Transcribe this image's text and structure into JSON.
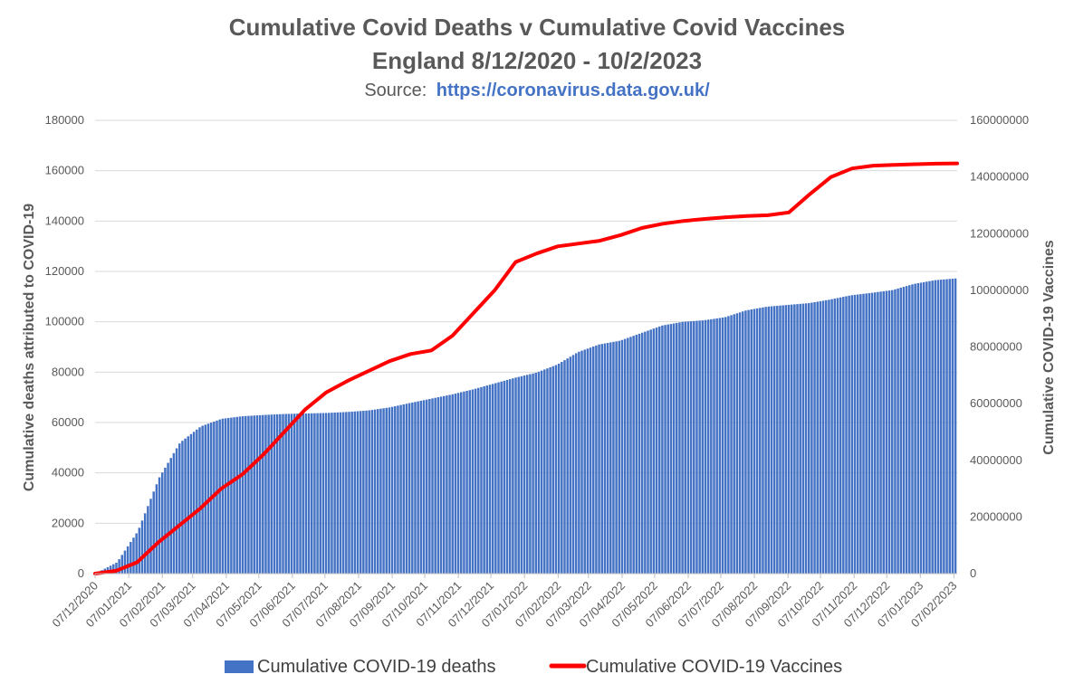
{
  "chart_data": {
    "type": "bar+line",
    "title": "Cumulative Covid Deaths v Cumulative Covid Vaccines",
    "subtitle": "England 8/12/2020 - 10/2/2023",
    "source_label": "Source:",
    "source_url": "https://coronavirus.data.gov.uk/",
    "ylabel_left": "Cumulative deaths attributed to COVID-19",
    "ylabel_right": "Cumulative COVID-19 Vaccines",
    "ylim_left": [
      0,
      180000
    ],
    "ylim_right": [
      0,
      160000000
    ],
    "yticks_left": [
      "0",
      "20000",
      "40000",
      "60000",
      "80000",
      "100000",
      "120000",
      "140000",
      "160000",
      "180000"
    ],
    "yticks_right": [
      "0",
      "20000000",
      "40000000",
      "60000000",
      "80000000",
      "100000000",
      "120000000",
      "140000000",
      "160000000"
    ],
    "x_range": [
      "2020-12-07",
      "2023-02-10"
    ],
    "x_tick_labels": [
      "07/12/2020",
      "07/01/2021",
      "07/02/2021",
      "07/03/2021",
      "07/04/2021",
      "07/05/2021",
      "07/06/2021",
      "07/07/2021",
      "07/08/2021",
      "07/09/2021",
      "07/10/2021",
      "07/11/2021",
      "07/12/2021",
      "07/01/2022",
      "07/02/2022",
      "07/03/2022",
      "07/04/2022",
      "07/05/2022",
      "07/06/2022",
      "07/07/2022",
      "07/08/2022",
      "07/09/2022",
      "07/10/2022",
      "07/11/2022",
      "07/12/2022",
      "07/01/2023",
      "07/02/2023"
    ],
    "grid": true,
    "legend_position": "bottom",
    "colors": {
      "deaths": "#4472c4",
      "vaccines": "#ff0000",
      "grid": "#d9d9d9"
    },
    "series": [
      {
        "name": "Cumulative COVID-19 deaths",
        "type": "bar",
        "axis": "left",
        "values": [
          200,
          4500,
          17000,
          38000,
          52000,
          58500,
          61500,
          62500,
          63000,
          63400,
          63600,
          63800,
          64200,
          64800,
          66000,
          67800,
          69500,
          71200,
          73200,
          75500,
          77800,
          79800,
          83000,
          88000,
          91000,
          92500,
          95500,
          98500,
          100000,
          100600,
          101800,
          104500,
          106000,
          106700,
          107400,
          108800,
          110500,
          111500,
          112600,
          115000,
          116500,
          117200
        ]
      },
      {
        "name": "Cumulative COVID-19 Vaccines",
        "type": "line",
        "axis": "right",
        "values": [
          0,
          1000000,
          4000000,
          11000000,
          17000000,
          23000000,
          30000000,
          35000000,
          42000000,
          50000000,
          58000000,
          64000000,
          68000000,
          71500000,
          75000000,
          77500000,
          78800000,
          84000000,
          92000000,
          100000000,
          110000000,
          113000000,
          115500000,
          116500000,
          117500000,
          119500000,
          122000000,
          123500000,
          124500000,
          125200000,
          125800000,
          126200000,
          126500000,
          127500000,
          134000000,
          140000000,
          143000000,
          144000000,
          144300000,
          144500000,
          144700000,
          144800000
        ]
      }
    ]
  }
}
